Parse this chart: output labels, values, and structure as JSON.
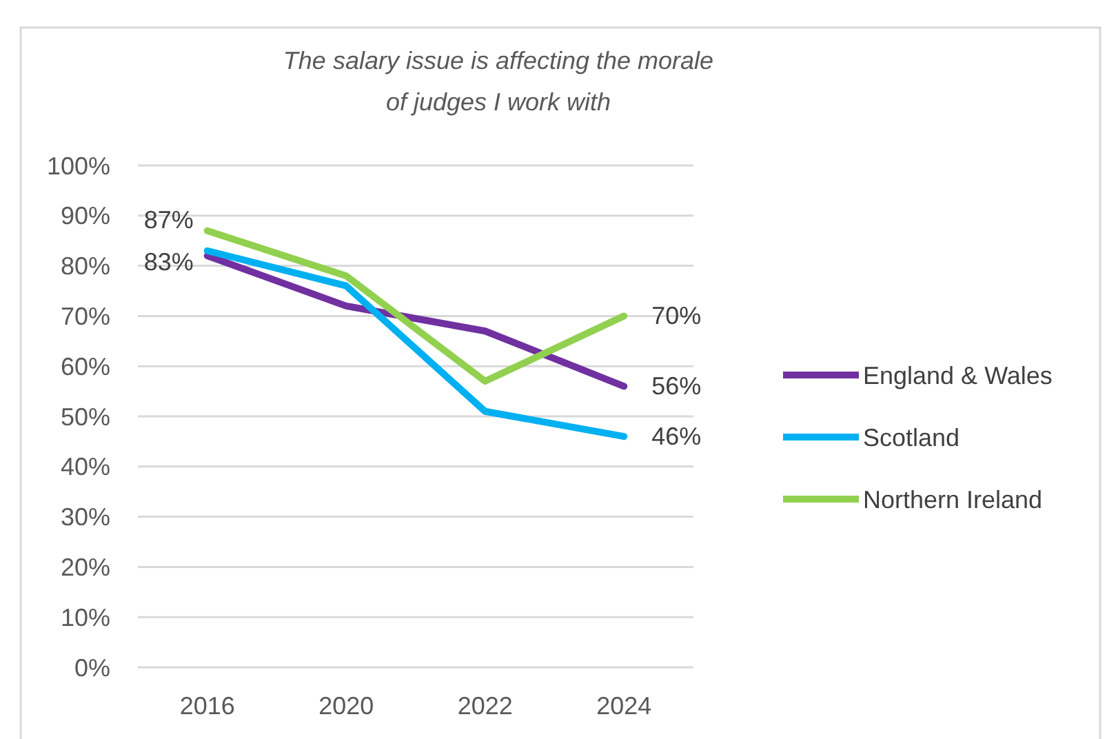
{
  "chart_data": {
    "type": "line",
    "title": "The salary issue is affecting the morale of judges I work with",
    "categories": [
      "2016",
      "2020",
      "2022",
      "2024"
    ],
    "series": [
      {
        "name": "England & Wales",
        "color": "#7030a0",
        "values": [
          82,
          72,
          67,
          56
        ],
        "value_labels": [
          null,
          null,
          null,
          "56%"
        ]
      },
      {
        "name": "Scotland",
        "color": "#00b0f0",
        "values": [
          83,
          76,
          51,
          46
        ],
        "value_labels": [
          "83%",
          null,
          null,
          "46%"
        ]
      },
      {
        "name": "Northern Ireland",
        "color": "#92d050",
        "values": [
          87,
          78,
          57,
          70
        ],
        "value_labels": [
          "87%",
          null,
          null,
          "70%"
        ]
      }
    ],
    "ylim": [
      0,
      100
    ],
    "yticks": [
      {
        "value": 0,
        "label": "0%"
      },
      {
        "value": 10,
        "label": "10%"
      },
      {
        "value": 20,
        "label": "20%"
      },
      {
        "value": 30,
        "label": "30%"
      },
      {
        "value": 40,
        "label": "40%"
      },
      {
        "value": 50,
        "label": "50%"
      },
      {
        "value": 60,
        "label": "60%"
      },
      {
        "value": 70,
        "label": "70%"
      },
      {
        "value": 80,
        "label": "80%"
      },
      {
        "value": 90,
        "label": "90%"
      },
      {
        "value": 100,
        "label": "100%"
      }
    ],
    "grid": "y",
    "legend": "right",
    "marker": "none",
    "line_style": "solid"
  }
}
